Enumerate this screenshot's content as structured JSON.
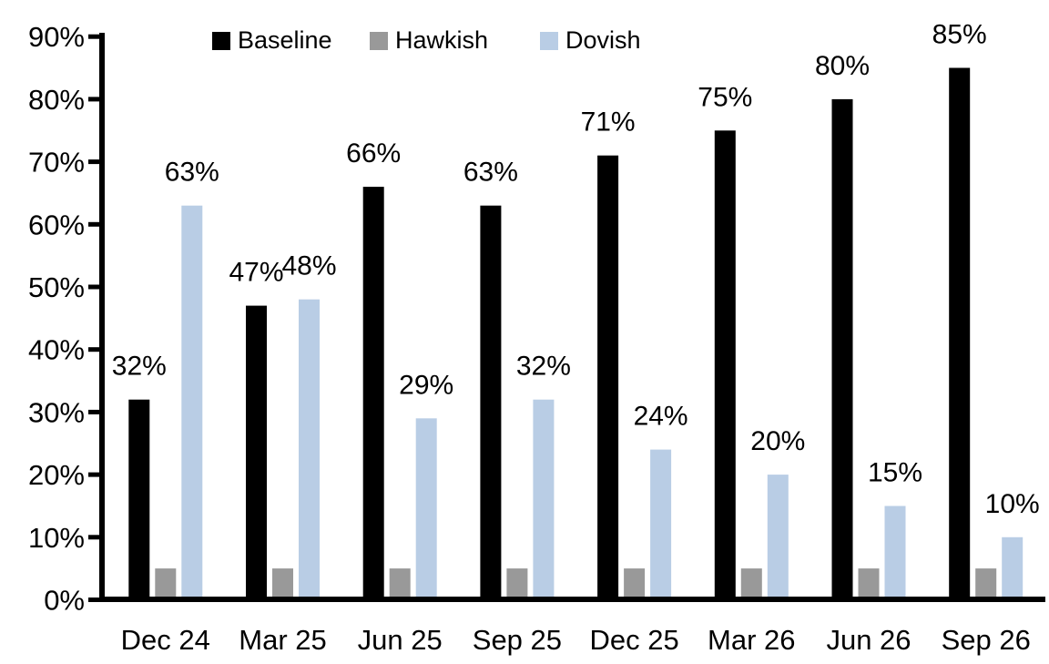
{
  "chart_data": {
    "type": "bar",
    "title": "",
    "xlabel": "",
    "ylabel": "",
    "legend_position": "top",
    "grid": false,
    "background_color": "#ffffff",
    "axis_color": "#000000",
    "text_color": "#000000",
    "categories": [
      "Dec 24",
      "Mar 25",
      "Jun 25",
      "Sep 25",
      "Dec 25",
      "Mar 26",
      "Jun 26",
      "Sep 26"
    ],
    "series": [
      {
        "name": "Baseline",
        "color": "#000000",
        "values": [
          32,
          47,
          66,
          63,
          71,
          75,
          80,
          85
        ],
        "labels": [
          "32%",
          "47%",
          "66%",
          "63%",
          "71%",
          "75%",
          "80%",
          "85%"
        ]
      },
      {
        "name": "Hawkish",
        "color": "#999999",
        "values": [
          5,
          5,
          5,
          5,
          5,
          5,
          5,
          5
        ],
        "labels": [
          "",
          "",
          "",
          "",
          "",
          "",
          "",
          ""
        ]
      },
      {
        "name": "Dovish",
        "color": "#B9CDE5",
        "values": [
          63,
          48,
          29,
          32,
          24,
          20,
          15,
          10
        ],
        "labels": [
          "63%",
          "48%",
          "29%",
          "32%",
          "24%",
          "20%",
          "15%",
          "10%"
        ]
      }
    ],
    "y_axis": {
      "min": 0,
      "max": 90,
      "tick_step": 10,
      "tick_labels": [
        "0%",
        "10%",
        "20%",
        "30%",
        "40%",
        "50%",
        "60%",
        "70%",
        "80%",
        "90%"
      ]
    }
  }
}
